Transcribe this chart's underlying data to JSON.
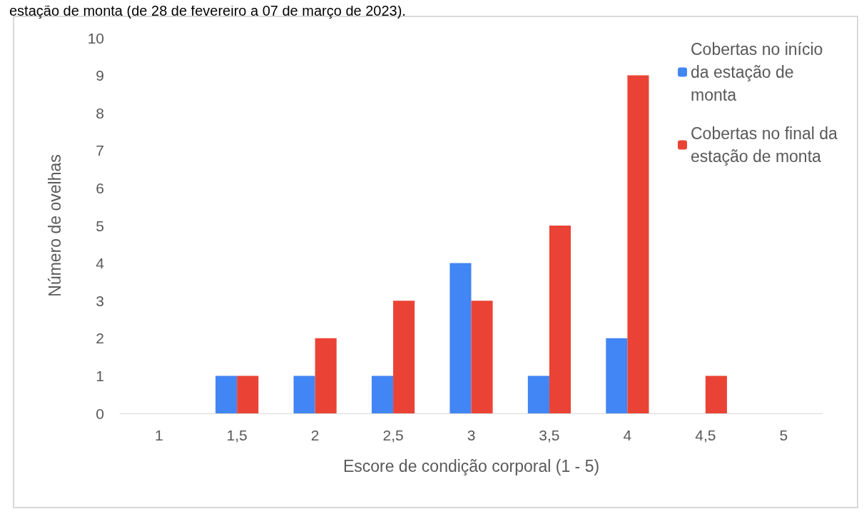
{
  "chart_data": {
    "type": "bar",
    "xlabel": "Escore de condição corporal (1 - 5)",
    "ylabel": "Número de ovelhas",
    "annotations": [
      "estação de monta (de 28 de fevereiro a 07 de março de 2023)."
    ],
    "categories": [
      "1",
      "1,5",
      "2",
      "2,5",
      "3",
      "3,5",
      "4",
      "4,5",
      "5"
    ],
    "series": [
      {
        "name": "Cobertas no início da estação de monta",
        "color": "#4285f4",
        "values": [
          0,
          1,
          1,
          1,
          4,
          1,
          2,
          0,
          0
        ]
      },
      {
        "name": "Cobertas no final da estação de monta",
        "color": "#ea4335",
        "values": [
          0,
          1,
          2,
          3,
          3,
          5,
          9,
          1,
          0
        ]
      }
    ],
    "ylim": [
      0,
      10
    ],
    "yticks": [
      0,
      1,
      2,
      3,
      4,
      5,
      6,
      7,
      8,
      9,
      10
    ],
    "grid": false,
    "legend": "right"
  }
}
